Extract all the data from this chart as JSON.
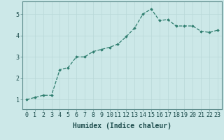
{
  "x": [
    0,
    1,
    2,
    3,
    4,
    5,
    6,
    7,
    8,
    9,
    10,
    11,
    12,
    13,
    14,
    15,
    16,
    17,
    18,
    19,
    20,
    21,
    22,
    23
  ],
  "y": [
    1.0,
    1.1,
    1.2,
    1.2,
    2.4,
    2.5,
    3.0,
    3.0,
    3.25,
    3.35,
    3.45,
    3.6,
    3.95,
    4.35,
    5.0,
    5.25,
    4.7,
    4.75,
    4.45,
    4.45,
    4.45,
    4.2,
    4.15,
    4.25
  ],
  "line_color": "#2e7d6e",
  "marker": "D",
  "marker_size": 1.8,
  "line_width": 0.9,
  "bg_color": "#cce8e8",
  "grid_color": "#b8d8d8",
  "xlabel": "Humidex (Indice chaleur)",
  "xlabel_fontsize": 7,
  "yticks": [
    1,
    2,
    3,
    4,
    5
  ],
  "xticks": [
    0,
    1,
    2,
    3,
    4,
    5,
    6,
    7,
    8,
    9,
    10,
    11,
    12,
    13,
    14,
    15,
    16,
    17,
    18,
    19,
    20,
    21,
    22,
    23
  ],
  "ylim": [
    0.55,
    5.6
  ],
  "xlim": [
    -0.5,
    23.5
  ],
  "tick_fontsize": 6,
  "axes_bg_color": "#cce8e8",
  "spine_color": "#5a8a8a",
  "grid_linewidth": 0.5
}
